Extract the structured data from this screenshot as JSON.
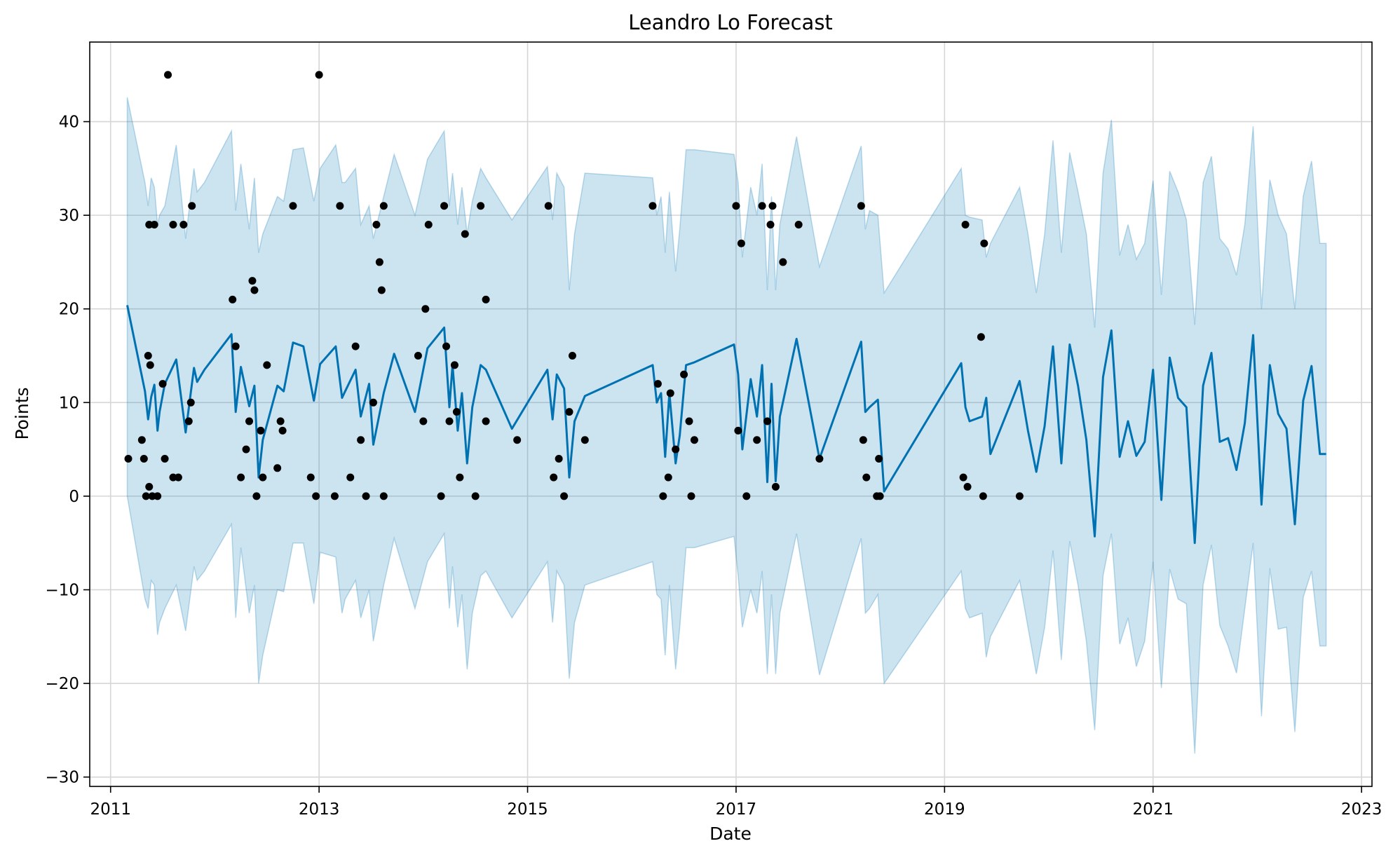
{
  "chart_data": {
    "type": "line",
    "title": "Leandro Lo Forecast",
    "xlabel": "Date",
    "ylabel": "Points",
    "xlim": [
      2010.8,
      2023.1
    ],
    "ylim": [
      -31,
      48.5
    ],
    "grid": true,
    "x_ticks": [
      2011,
      2013,
      2015,
      2017,
      2019,
      2021,
      2023
    ],
    "x_tick_labels": [
      "2011",
      "2013",
      "2015",
      "2017",
      "2019",
      "2021",
      "2023"
    ],
    "y_ticks": [
      40,
      30,
      20,
      10,
      0,
      -10,
      -20,
      -30
    ],
    "y_tick_labels": [
      "40",
      "30",
      "20",
      "10",
      "0",
      "−10",
      "−20",
      "−30"
    ],
    "colors": {
      "forecast_line": "#0072b2",
      "interval_fill": "#0072b2",
      "observations": "#000000",
      "grid": "#d6d6d6"
    },
    "series": [
      {
        "name": "forecast",
        "type": "line",
        "x": [
          2011.16,
          2011.33,
          2011.36,
          2011.39,
          2011.42,
          2011.45,
          2011.47,
          2011.52,
          2011.63,
          2011.72,
          2011.8,
          2011.83,
          2011.9,
          2012.16,
          2012.2,
          2012.25,
          2012.33,
          2012.38,
          2012.42,
          2012.46,
          2012.6,
          2012.66,
          2012.75,
          2012.85,
          2012.95,
          2013.01,
          2013.16,
          2013.22,
          2013.25,
          2013.35,
          2013.4,
          2013.48,
          2013.52,
          2013.62,
          2013.72,
          2013.92,
          2014.04,
          2014.2,
          2014.25,
          2014.28,
          2014.33,
          2014.37,
          2014.42,
          2014.47,
          2014.55,
          2014.6,
          2014.85,
          2015.19,
          2015.24,
          2015.28,
          2015.35,
          2015.4,
          2015.45,
          2015.55,
          2016.2,
          2016.24,
          2016.28,
          2016.32,
          2016.36,
          2016.42,
          2016.46,
          2016.52,
          2016.6,
          2016.98,
          2017.02,
          2017.06,
          2017.14,
          2017.2,
          2017.25,
          2017.3,
          2017.34,
          2017.38,
          2017.42,
          2017.58,
          2017.8,
          2018.2,
          2018.24,
          2018.28,
          2018.36,
          2018.42,
          2019.16,
          2019.2,
          2019.24,
          2019.36,
          2019.4,
          2019.44,
          2019.72,
          2019.8,
          2019.88,
          2019.96,
          2020.04,
          2020.12,
          2020.2,
          2020.28,
          2020.36,
          2020.44,
          2020.52,
          2020.6,
          2020.68,
          2020.76,
          2020.84,
          2020.92,
          2021.0,
          2021.08,
          2021.16,
          2021.24,
          2021.32,
          2021.4,
          2021.48,
          2021.56,
          2021.64,
          2021.72,
          2021.8,
          2021.88,
          2021.96,
          2022.04,
          2022.12,
          2022.2,
          2022.28,
          2022.36,
          2022.44,
          2022.52,
          2022.6,
          2022.66
        ],
        "values": [
          20.4,
          11.2,
          8.2,
          10.6,
          11.9,
          7.0,
          9.0,
          12.0,
          14.6,
          6.8,
          13.7,
          12.2,
          13.5,
          17.3,
          9.0,
          13.8,
          9.6,
          11.8,
          2.0,
          6.0,
          11.8,
          11.2,
          16.4,
          16.0,
          10.2,
          14.1,
          16.0,
          10.5,
          11.2,
          13.5,
          8.5,
          12.0,
          5.5,
          11.0,
          15.2,
          9.0,
          15.8,
          18.0,
          9.5,
          14.0,
          7.0,
          11.0,
          3.5,
          9.5,
          14.0,
          13.5,
          7.2,
          13.5,
          8.2,
          13.0,
          11.5,
          2.0,
          8.0,
          10.7,
          14.0,
          10.0,
          11.0,
          4.2,
          11.0,
          3.5,
          6.5,
          14.0,
          14.3,
          16.2,
          13.0,
          5.0,
          12.5,
          8.5,
          14.0,
          1.5,
          12.0,
          1.6,
          8.5,
          16.8,
          4.0,
          16.5,
          9.0,
          9.5,
          10.3,
          0.5,
          14.2,
          9.5,
          8.0,
          8.5,
          10.5,
          4.5,
          12.3,
          7.0,
          2.6,
          7.5,
          16.0,
          3.5,
          16.2,
          11.8,
          6.0,
          -4.3,
          12.7,
          17.7,
          4.2,
          8.0,
          4.3,
          5.8,
          13.5,
          -0.4,
          14.8,
          10.5,
          9.5,
          -5.0,
          11.8,
          15.3,
          5.8,
          6.2,
          2.8,
          7.8,
          17.2,
          -0.9,
          14.0,
          8.8,
          7.2,
          -3.0,
          10.2,
          13.9,
          4.5,
          4.5
        ]
      },
      {
        "name": "uncertainty_upper",
        "type": "area_upper",
        "x": [
          2011.16,
          2011.33,
          2011.36,
          2011.39,
          2011.42,
          2011.45,
          2011.47,
          2011.52,
          2011.63,
          2011.72,
          2011.8,
          2011.83,
          2011.9,
          2012.16,
          2012.2,
          2012.25,
          2012.33,
          2012.38,
          2012.42,
          2012.46,
          2012.6,
          2012.66,
          2012.75,
          2012.85,
          2012.95,
          2013.01,
          2013.16,
          2013.22,
          2013.25,
          2013.35,
          2013.4,
          2013.48,
          2013.52,
          2013.62,
          2013.72,
          2013.92,
          2014.04,
          2014.2,
          2014.25,
          2014.28,
          2014.33,
          2014.37,
          2014.42,
          2014.47,
          2014.55,
          2014.6,
          2014.85,
          2015.19,
          2015.24,
          2015.28,
          2015.35,
          2015.4,
          2015.45,
          2015.55,
          2016.2,
          2016.24,
          2016.28,
          2016.32,
          2016.36,
          2016.42,
          2016.46,
          2016.52,
          2016.6,
          2016.98,
          2017.02,
          2017.06,
          2017.14,
          2017.2,
          2017.25,
          2017.3,
          2017.34,
          2017.38,
          2017.42,
          2017.58,
          2017.8,
          2018.2,
          2018.24,
          2018.28,
          2018.36,
          2018.42,
          2019.16,
          2019.2,
          2019.24,
          2019.36,
          2019.4,
          2019.44,
          2019.72,
          2019.8,
          2019.88,
          2019.96,
          2020.04,
          2020.12,
          2020.2,
          2020.28,
          2020.36,
          2020.44,
          2020.52,
          2020.6,
          2020.68,
          2020.76,
          2020.84,
          2020.92,
          2021.0,
          2021.08,
          2021.16,
          2021.24,
          2021.32,
          2021.4,
          2021.48,
          2021.56,
          2021.64,
          2021.72,
          2021.8,
          2021.88,
          2021.96,
          2022.04,
          2022.12,
          2022.2,
          2022.28,
          2022.36,
          2022.44,
          2022.52,
          2022.6,
          2022.66
        ],
        "values": [
          42.6,
          33.5,
          31.0,
          34.0,
          33.0,
          29.0,
          30.0,
          31.0,
          37.5,
          27.5,
          35.0,
          32.5,
          33.5,
          39.0,
          30.5,
          35.5,
          28.5,
          34.0,
          26.0,
          28.0,
          32.0,
          31.5,
          37.0,
          37.2,
          31.5,
          35.0,
          37.5,
          33.5,
          33.5,
          35.0,
          29.0,
          31.0,
          27.5,
          32.0,
          36.5,
          30.0,
          36.0,
          39.0,
          31.0,
          34.5,
          29.0,
          33.0,
          28.0,
          31.5,
          35.0,
          34.0,
          29.5,
          35.2,
          29.5,
          34.5,
          33.0,
          22.0,
          28.0,
          34.5,
          34.0,
          30.0,
          32.0,
          26.0,
          32.5,
          24.0,
          28.5,
          37.0,
          37.0,
          36.5,
          33.5,
          25.5,
          33.0,
          30.0,
          35.5,
          22.0,
          32.0,
          22.0,
          29.0,
          38.4,
          24.5,
          37.4,
          28.5,
          30.5,
          30.0,
          21.7,
          35.0,
          30.0,
          29.8,
          29.5,
          25.5,
          27.0,
          33.0,
          28.0,
          21.7,
          28.0,
          38.0,
          26.0,
          36.7,
          32.5,
          28.0,
          18.0,
          34.5,
          40.2,
          25.7,
          29.0,
          25.3,
          27.0,
          33.7,
          21.5,
          34.7,
          32.5,
          29.5,
          18.3,
          33.5,
          36.3,
          27.5,
          26.4,
          23.6,
          29.0,
          39.5,
          20.0,
          33.8,
          30.0,
          28.0,
          20.0,
          32.0,
          35.8,
          27.0,
          27.0
        ]
      },
      {
        "name": "uncertainty_lower",
        "type": "area_lower",
        "x": [
          2011.16,
          2011.33,
          2011.36,
          2011.39,
          2011.42,
          2011.45,
          2011.47,
          2011.52,
          2011.63,
          2011.72,
          2011.8,
          2011.83,
          2011.9,
          2012.16,
          2012.2,
          2012.25,
          2012.33,
          2012.38,
          2012.42,
          2012.46,
          2012.6,
          2012.66,
          2012.75,
          2012.85,
          2012.95,
          2013.01,
          2013.16,
          2013.22,
          2013.25,
          2013.35,
          2013.4,
          2013.48,
          2013.52,
          2013.62,
          2013.72,
          2013.92,
          2014.04,
          2014.2,
          2014.25,
          2014.28,
          2014.33,
          2014.37,
          2014.42,
          2014.47,
          2014.55,
          2014.6,
          2014.85,
          2015.19,
          2015.24,
          2015.28,
          2015.35,
          2015.4,
          2015.45,
          2015.55,
          2016.2,
          2016.24,
          2016.28,
          2016.32,
          2016.36,
          2016.42,
          2016.46,
          2016.52,
          2016.6,
          2016.98,
          2017.02,
          2017.06,
          2017.14,
          2017.2,
          2017.25,
          2017.3,
          2017.34,
          2017.38,
          2017.42,
          2017.58,
          2017.8,
          2018.2,
          2018.24,
          2018.28,
          2018.36,
          2018.42,
          2019.16,
          2019.2,
          2019.24,
          2019.36,
          2019.4,
          2019.44,
          2019.72,
          2019.8,
          2019.88,
          2019.96,
          2020.04,
          2020.12,
          2020.2,
          2020.28,
          2020.36,
          2020.44,
          2020.52,
          2020.6,
          2020.68,
          2020.76,
          2020.84,
          2020.92,
          2021.0,
          2021.08,
          2021.16,
          2021.24,
          2021.32,
          2021.4,
          2021.48,
          2021.56,
          2021.64,
          2021.72,
          2021.8,
          2021.88,
          2021.96,
          2022.04,
          2022.12,
          2022.2,
          2022.28,
          2022.36,
          2022.44,
          2022.52,
          2022.6,
          2022.66
        ],
        "values": [
          0.0,
          -11.0,
          -12.0,
          -9.0,
          -9.5,
          -14.8,
          -13.5,
          -12.0,
          -9.5,
          -14.4,
          -7.5,
          -9.0,
          -8.0,
          -3.0,
          -13.0,
          -5.5,
          -12.5,
          -9.5,
          -20.0,
          -17.0,
          -10.0,
          -10.2,
          -5.0,
          -5.0,
          -11.5,
          -6.0,
          -6.5,
          -12.5,
          -11.0,
          -9.0,
          -13.0,
          -10.0,
          -15.5,
          -9.5,
          -4.5,
          -12.0,
          -7.0,
          -4.0,
          -12.0,
          -7.5,
          -14.0,
          -10.5,
          -18.5,
          -12.5,
          -8.5,
          -8.0,
          -13.0,
          -7.0,
          -13.5,
          -8.0,
          -9.5,
          -19.5,
          -13.5,
          -9.5,
          -7.0,
          -10.5,
          -11.0,
          -17.0,
          -9.5,
          -18.5,
          -14.0,
          -5.5,
          -5.5,
          -4.3,
          -8.5,
          -14.0,
          -10.0,
          -12.5,
          -8.0,
          -19.0,
          -10.5,
          -19.0,
          -12.5,
          -4.0,
          -19.1,
          -4.5,
          -12.5,
          -12.0,
          -10.5,
          -20.0,
          -8.0,
          -12.0,
          -13.0,
          -12.5,
          -17.2,
          -15.0,
          -9.0,
          -14.0,
          -19.0,
          -14.0,
          -5.8,
          -17.5,
          -4.8,
          -9.5,
          -15.5,
          -25.0,
          -8.5,
          -4.0,
          -15.8,
          -13.0,
          -18.2,
          -15.5,
          -7.0,
          -20.5,
          -7.8,
          -11.0,
          -11.5,
          -27.5,
          -9.5,
          -5.2,
          -13.8,
          -16.0,
          -18.9,
          -12.0,
          -5.0,
          -23.5,
          -7.7,
          -14.2,
          -14.0,
          -25.2,
          -10.8,
          -8.0,
          -16.0,
          -16.0
        ]
      },
      {
        "name": "observations",
        "type": "scatter",
        "x": [
          2011.17,
          2011.3,
          2011.32,
          2011.34,
          2011.36,
          2011.37,
          2011.37,
          2011.38,
          2011.4,
          2011.42,
          2011.45,
          2011.5,
          2011.52,
          2011.55,
          2011.6,
          2011.6,
          2011.65,
          2011.7,
          2011.75,
          2011.77,
          2011.78,
          2012.17,
          2012.2,
          2012.25,
          2012.3,
          2012.33,
          2012.36,
          2012.38,
          2012.4,
          2012.44,
          2012.46,
          2012.5,
          2012.6,
          2012.63,
          2012.65,
          2012.75,
          2012.92,
          2012.97,
          2013.0,
          2013.15,
          2013.2,
          2013.3,
          2013.35,
          2013.4,
          2013.45,
          2013.52,
          2013.55,
          2013.58,
          2013.6,
          2013.62,
          2013.62,
          2013.95,
          2014.0,
          2014.02,
          2014.05,
          2014.17,
          2014.2,
          2014.22,
          2014.25,
          2014.3,
          2014.32,
          2014.35,
          2014.4,
          2014.5,
          2014.55,
          2014.6,
          2014.6,
          2014.9,
          2015.2,
          2015.25,
          2015.3,
          2015.35,
          2015.4,
          2015.43,
          2015.55,
          2016.2,
          2016.25,
          2016.3,
          2016.35,
          2016.37,
          2016.42,
          2016.5,
          2016.55,
          2016.57,
          2016.6,
          2017.0,
          2017.02,
          2017.05,
          2017.1,
          2017.2,
          2017.25,
          2017.3,
          2017.33,
          2017.35,
          2017.38,
          2017.45,
          2017.6,
          2017.8,
          2018.2,
          2018.22,
          2018.25,
          2018.35,
          2018.37,
          2018.38,
          2019.18,
          2019.2,
          2019.22,
          2019.35,
          2019.37,
          2019.38,
          2019.72
        ],
        "values": [
          4,
          6,
          4,
          0,
          15,
          1,
          29,
          14,
          0,
          29,
          0,
          12,
          4,
          45,
          29,
          2,
          2,
          29,
          8,
          10,
          31,
          21,
          16,
          2,
          5,
          8,
          23,
          22,
          0,
          7,
          2,
          14,
          3,
          8,
          7,
          31,
          2,
          0,
          45,
          0,
          31,
          2,
          16,
          6,
          0,
          10,
          29,
          25,
          22,
          31,
          0,
          15,
          8,
          20,
          29,
          0,
          31,
          16,
          8,
          14,
          9,
          2,
          28,
          0,
          31,
          21,
          8,
          6,
          31,
          2,
          4,
          0,
          9,
          15,
          6,
          31,
          12,
          0,
          2,
          11,
          5,
          13,
          8,
          0,
          6,
          31,
          7,
          27,
          0,
          6,
          31,
          8,
          29,
          31,
          1,
          25,
          29,
          4,
          31,
          6,
          2,
          0,
          4,
          0,
          2,
          29,
          1,
          17,
          0,
          27,
          0
        ]
      }
    ]
  }
}
